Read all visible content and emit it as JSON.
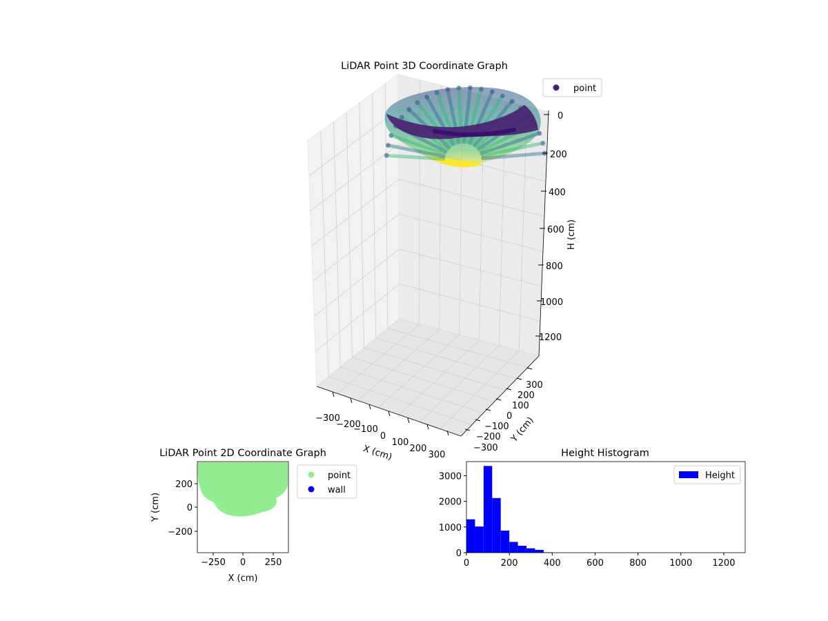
{
  "chart_data": [
    {
      "type": "scatter3d",
      "title": "LiDAR Point 3D Coordinate Graph",
      "xlabel": "X (cm)",
      "ylabel": "Y (cm)",
      "zlabel": "H (cm)",
      "x_ticks": [
        "−300",
        "−200",
        "−100",
        "0",
        "100",
        "200",
        "300"
      ],
      "y_ticks": [
        "−300",
        "−200",
        "−100",
        "0",
        "100",
        "200",
        "300"
      ],
      "z_ticks": [
        "0",
        "200",
        "400",
        "600",
        "800",
        "1000",
        "1200"
      ],
      "xlim": [
        -350,
        350
      ],
      "ylim": [
        -350,
        350
      ],
      "zlim": [
        0,
        1300
      ],
      "z_inverted": true,
      "colormap": "viridis",
      "legend": {
        "placement": "top-right",
        "entries": [
          {
            "label": "point",
            "color": "#46237a"
          }
        ]
      },
      "grid": true
    },
    {
      "type": "scatter",
      "title": "LiDAR Point 2D Coordinate Graph",
      "xlabel": "X (cm)",
      "ylabel": "Y (cm)",
      "x_ticks": [
        "−250",
        "0",
        "250"
      ],
      "y_ticks": [
        "200",
        "0",
        "−200"
      ],
      "xlim": [
        -380,
        380
      ],
      "ylim": [
        -380,
        380
      ],
      "legend": {
        "placement": "outside-right",
        "entries": [
          {
            "label": "point",
            "color": "#90ee90"
          },
          {
            "label": "wall",
            "color": "#0000ff"
          }
        ]
      },
      "grid": false
    },
    {
      "type": "histogram",
      "title": "Height Histogram",
      "x_ticks": [
        "0",
        "200",
        "400",
        "600",
        "800",
        "1000",
        "1200"
      ],
      "y_ticks": [
        "0",
        "1000",
        "2000",
        "3000"
      ],
      "xlim": [
        0,
        1300
      ],
      "ylim": [
        0,
        3550
      ],
      "bin_width": 40,
      "bin_starts": [
        0,
        40,
        80,
        120,
        160,
        200,
        240,
        280,
        320,
        360
      ],
      "counts": [
        1300,
        1020,
        3380,
        2130,
        860,
        420,
        270,
        170,
        110,
        15
      ],
      "color": "#0000ff",
      "legend": {
        "placement": "top-right",
        "entries": [
          {
            "label": "Height",
            "color": "#0000ff"
          }
        ]
      },
      "grid": false
    }
  ]
}
